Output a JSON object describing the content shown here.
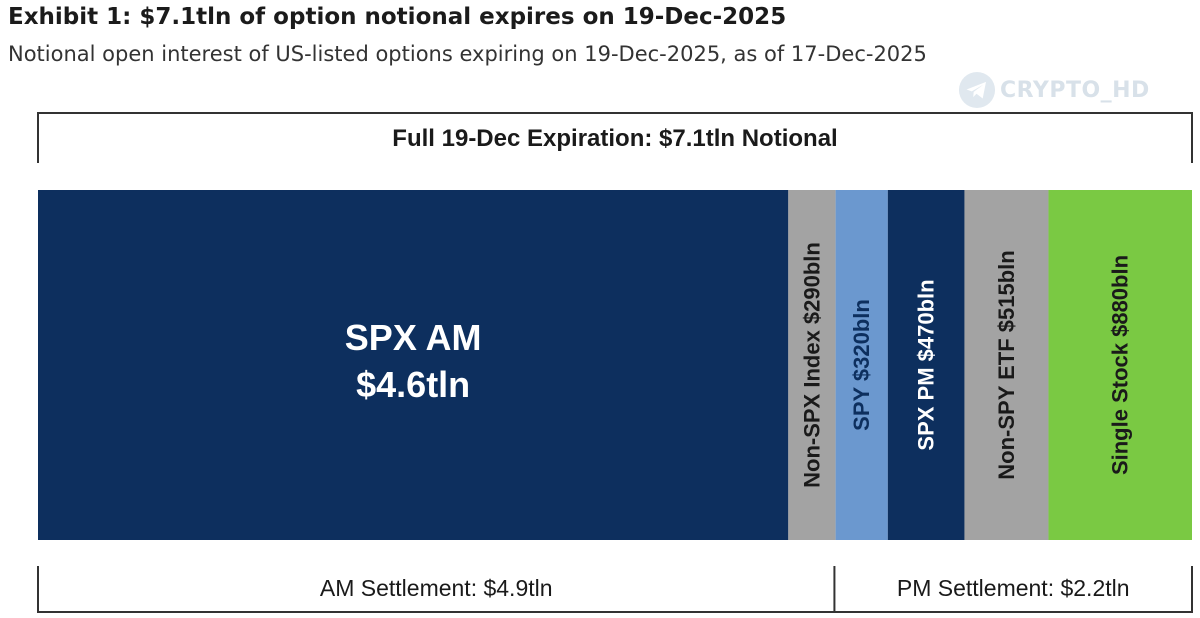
{
  "header": {
    "title": "Exhibit 1: $7.1tln of option notional expires on 19-Dec-2025",
    "subtitle": "Notional open interest of US-listed options expiring on 19-Dec-2025, as of 17-Dec-2025"
  },
  "watermark": {
    "text": "CRYPTO_HD",
    "icon": "telegram-icon"
  },
  "colors": {
    "title": "#1b1b1b",
    "subtitle": "#333333",
    "bracket": "#333333",
    "label_dark": "#1a1a1a",
    "label_light": "#ffffff"
  },
  "chart_data": {
    "type": "bar",
    "orientation": "horizontal-stacked",
    "title": "Full 19-Dec Expiration: $7.1tln Notional",
    "total": 7.1,
    "unit": "tln",
    "segments": [
      {
        "name": "SPX AM",
        "value_label": "$4.6tln",
        "value": 4.6,
        "color": "#0d2f5e",
        "text_color": "#ffffff",
        "vertical": false
      },
      {
        "name": "Non-SPX Index",
        "value_label": "$290bln",
        "value": 0.29,
        "color": "#a3a3a3",
        "text_color": "#1a1a1a",
        "vertical": true
      },
      {
        "name": "SPY",
        "value_label": "$320bln",
        "value": 0.32,
        "color": "#6b98cf",
        "text_color": "#0d2f5e",
        "vertical": true
      },
      {
        "name": "SPX PM",
        "value_label": "$470bln",
        "value": 0.47,
        "color": "#0d2f5e",
        "text_color": "#ffffff",
        "vertical": true
      },
      {
        "name": "Non-SPY ETF",
        "value_label": "$515bln",
        "value": 0.515,
        "color": "#a3a3a3",
        "text_color": "#1a1a1a",
        "vertical": true
      },
      {
        "name": "Single Stock",
        "value_label": "$880bln",
        "value": 0.88,
        "color": "#7ac943",
        "text_color": "#1a1a1a",
        "vertical": true
      }
    ],
    "groups": [
      {
        "label": "AM Settlement: $4.9tln",
        "value": 4.9
      },
      {
        "label": "PM Settlement: $2.2tln",
        "value": 2.2
      }
    ]
  }
}
